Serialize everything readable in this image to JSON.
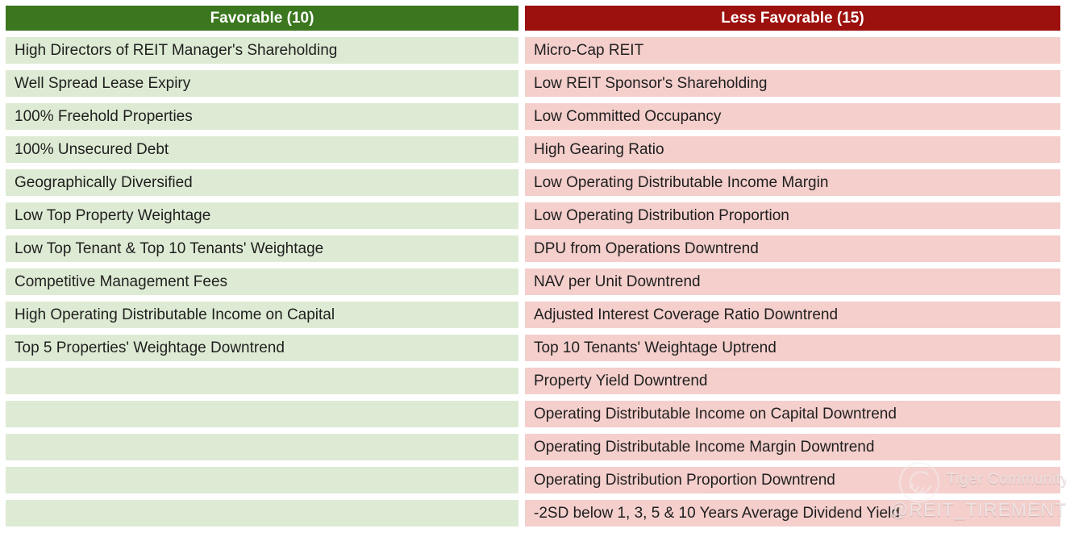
{
  "columns": [
    {
      "header": "Favorable (10)",
      "type": "favorable",
      "rows": [
        "High Directors of REIT Manager's Shareholding",
        "Well Spread Lease Expiry",
        "100% Freehold Properties",
        "100% Unsecured Debt",
        "Geographically Diversified",
        "Low Top Property Weightage",
        "Low Top Tenant & Top 10 Tenants' Weightage",
        "Competitive Management Fees",
        "High Operating Distributable Income on Capital",
        "Top 5 Properties' Weightage Downtrend",
        "",
        "",
        "",
        "",
        ""
      ]
    },
    {
      "header": "Less Favorable (15)",
      "type": "less_favorable",
      "rows": [
        "Micro-Cap REIT",
        "Low REIT Sponsor's Shareholding",
        "Low Committed Occupancy",
        "High Gearing Ratio",
        "Low Operating Distributable Income Margin",
        "Low Operating Distribution Proportion",
        "DPU from Operations Downtrend",
        "NAV per Unit Downtrend",
        "Adjusted Interest Coverage Ratio Downtrend",
        "Top 10 Tenants' Weightage Uptrend",
        "Property Yield Downtrend",
        "Operating Distributable Income on Capital Downtrend",
        "Operating Distributable Income Margin Downtrend",
        "Operating Distribution Proportion Downtrend",
        "-2SD below 1, 3, 5 & 10 Years Average Dividend Yield"
      ]
    }
  ],
  "watermark": {
    "logo_icon": "tiger-logo-icon",
    "community": "Tiger Community",
    "handle": "@REIT_TIREMENT"
  },
  "colors": {
    "header_green": "#3B771E",
    "header_red": "#9C100D",
    "row_green": "#DEEBD4",
    "row_pink": "#F4CFCC",
    "text": "#1F1F1F",
    "watermark_text": "#EEE6E6"
  }
}
